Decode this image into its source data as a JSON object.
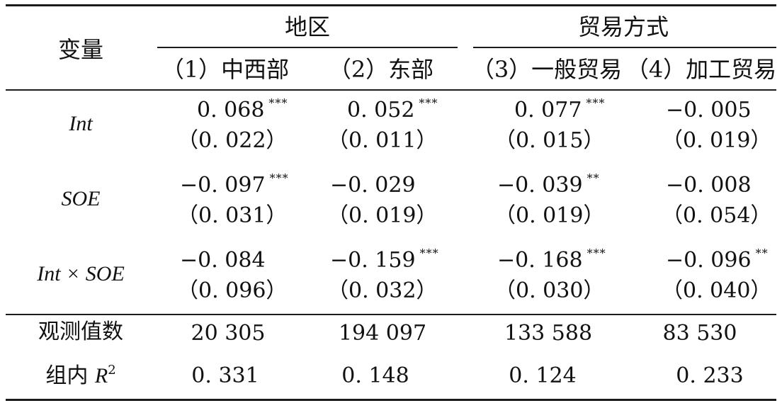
{
  "header": {
    "variable_label": "变量",
    "group_region": "地区",
    "group_trade": "贸易方式",
    "columns": [
      "（1）中西部",
      "（2）东部",
      "（3）一般贸易",
      "（4）加工贸易"
    ]
  },
  "rows": [
    {
      "label": "Int",
      "coef": [
        "0. 068",
        "0. 052",
        "0. 077",
        "−0. 005"
      ],
      "stars": [
        "***",
        "***",
        "***",
        ""
      ],
      "se": [
        "（0. 022）",
        "（0. 011）",
        "（0. 015）",
        "（0. 019）"
      ]
    },
    {
      "label": "SOE",
      "coef": [
        "−0. 097",
        "−0. 029",
        "−0. 039",
        "−0. 008"
      ],
      "stars": [
        "***",
        "",
        "**",
        ""
      ],
      "se": [
        "（0. 031）",
        "（0. 019）",
        "（0. 019）",
        "（0. 054）"
      ]
    },
    {
      "label": "Int × SOE",
      "coef": [
        "−0. 084",
        "−0. 159",
        "−0. 168",
        "−0. 096"
      ],
      "stars": [
        "",
        "***",
        "***",
        "**"
      ],
      "se": [
        "（0. 096）",
        "（0. 032）",
        "（0. 030）",
        "（0. 040）"
      ]
    }
  ],
  "footer": {
    "obs_label": "观测值数",
    "obs": [
      "20 305",
      "194 097",
      "133 588",
      "83 530"
    ],
    "r2_label_prefix": "组内 ",
    "r2_label_var": "R",
    "r2_label_sup": "2",
    "r2": [
      "0. 331",
      "0. 148",
      "0. 124",
      "0. 233"
    ]
  }
}
